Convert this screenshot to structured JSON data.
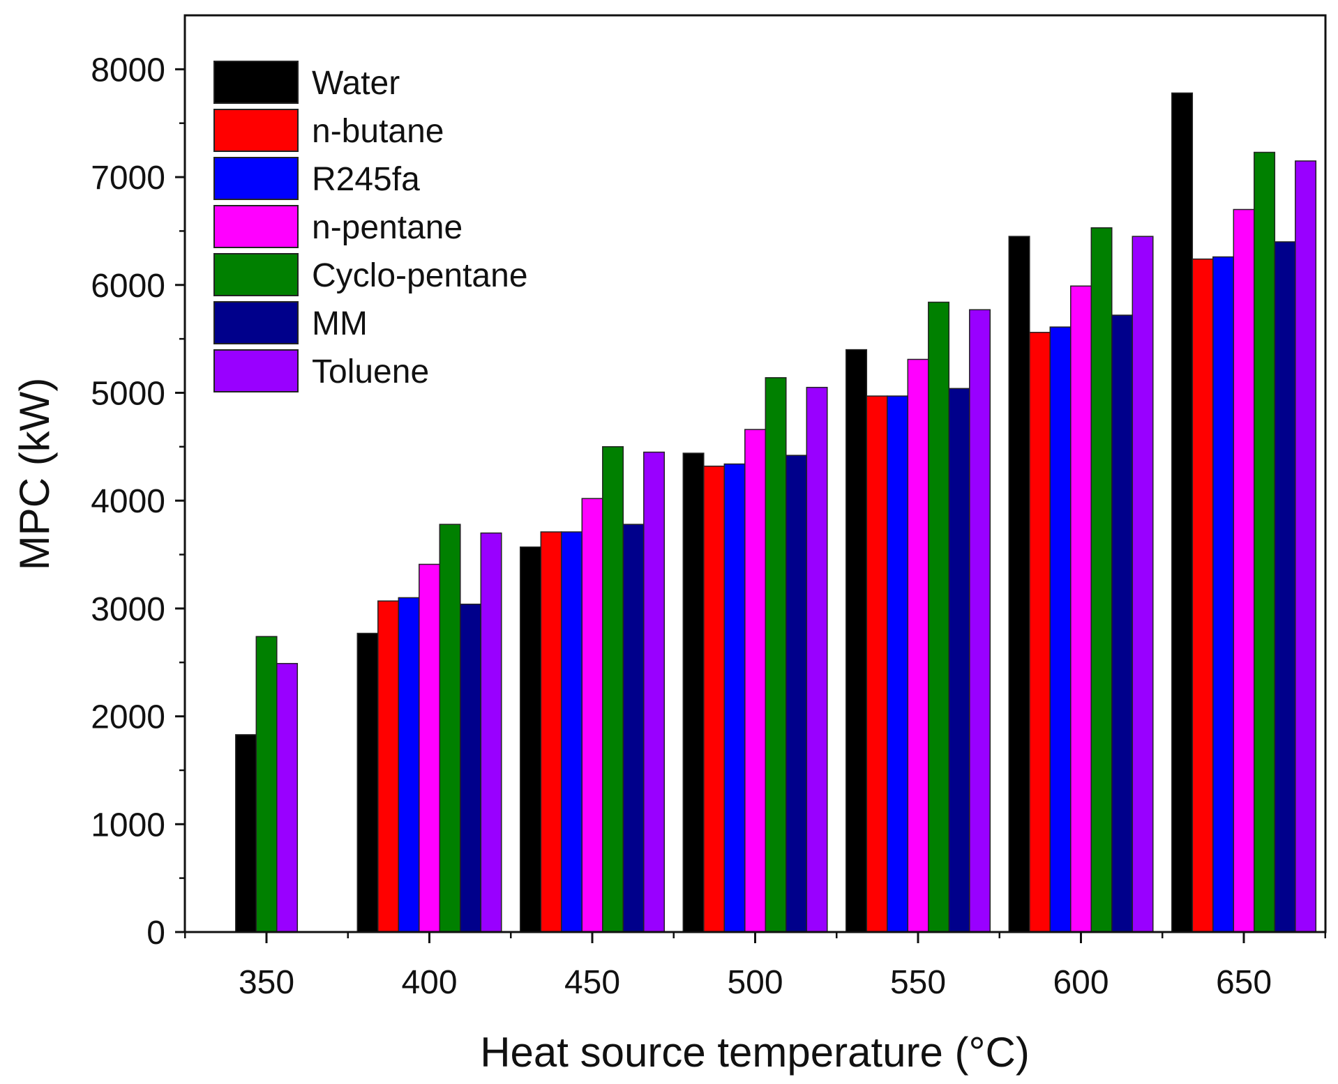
{
  "chart_data": {
    "type": "bar",
    "title": "",
    "xlabel": "Heat source temperature (°C)",
    "ylabel": "MPC (kW)",
    "ylim": [
      0,
      8500
    ],
    "yticks": [
      0,
      1000,
      2000,
      3000,
      4000,
      5000,
      6000,
      7000,
      8000
    ],
    "categories": [
      "350",
      "400",
      "450",
      "500",
      "550",
      "600",
      "650"
    ],
    "legend_position": "top-left",
    "series": [
      {
        "name": "Water",
        "color": "#000000",
        "values": [
          1830,
          2770,
          3570,
          4440,
          5400,
          6450,
          7780
        ]
      },
      {
        "name": "n-butane",
        "color": "#ff0000",
        "values": [
          null,
          3070,
          3710,
          4320,
          4970,
          5560,
          6240
        ]
      },
      {
        "name": "R245fa",
        "color": "#0000ff",
        "values": [
          null,
          3100,
          3710,
          4340,
          4970,
          5610,
          6260
        ]
      },
      {
        "name": "n-pentane",
        "color": "#ff00ff",
        "values": [
          null,
          3410,
          4020,
          4660,
          5310,
          5990,
          6700
        ]
      },
      {
        "name": "Cyclo-pentane",
        "color": "#008000",
        "values": [
          2740,
          3780,
          4500,
          5140,
          5840,
          6530,
          7230
        ]
      },
      {
        "name": "MM",
        "color": "#00008b",
        "values": [
          null,
          3040,
          3780,
          4420,
          5040,
          5720,
          6400
        ]
      },
      {
        "name": "Toluene",
        "color": "#9900ff",
        "values": [
          2490,
          3700,
          4450,
          5050,
          5770,
          6450,
          7150
        ]
      }
    ]
  }
}
